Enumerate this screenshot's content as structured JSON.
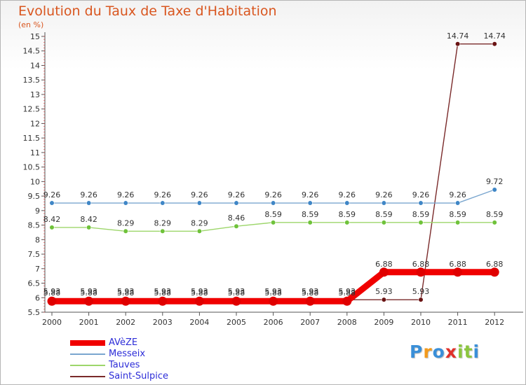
{
  "title": "Evolution du Taux de Taxe d'Habitation",
  "subtitle": "(en %)",
  "logo": {
    "letters": [
      "P",
      "r",
      "o",
      "x",
      "i",
      "t",
      "i"
    ],
    "colors": [
      "#3a8fd8",
      "#f29a1d",
      "#3a8fd8",
      "#e0302a",
      "#8cc63f",
      "#8cc63f",
      "#3a8fd8"
    ]
  },
  "chart_data": {
    "type": "line",
    "title": "Evolution du Taux de Taxe d'Habitation",
    "ylabel": "(en %)",
    "xlabel": "",
    "x": [
      "2000",
      "2001",
      "2002",
      "2003",
      "2004",
      "2005",
      "2006",
      "2007",
      "2008",
      "2009",
      "2010",
      "2011",
      "2012"
    ],
    "ylim": [
      5.5,
      15
    ],
    "yticks": [
      "5.5",
      "6",
      "6.5",
      "7",
      "7.5",
      "8",
      "8.5",
      "9",
      "9.5",
      "10",
      "10.5",
      "11",
      "11.5",
      "12",
      "12.5",
      "13",
      "13.5",
      "14",
      "14.5",
      "15"
    ],
    "grid": false,
    "legend_position": "bottom-left",
    "series": [
      {
        "name": "Saint-Sulpice",
        "color": "#7a2a2a",
        "marker": "#6a1414",
        "stroke_weight": "thin",
        "values": [
          5.93,
          5.93,
          5.93,
          5.93,
          5.93,
          5.93,
          5.93,
          5.93,
          5.93,
          5.93,
          5.93,
          14.74,
          14.74
        ],
        "labels": [
          "5.93",
          "5.93",
          "5.93",
          "5.93",
          "5.93",
          "5.93",
          "5.93",
          "5.93",
          "5.93",
          "5.93",
          "5.93",
          "14.74",
          "14.74"
        ]
      },
      {
        "name": "Tauves",
        "color": "#9dd66b",
        "marker": "#6fc23a",
        "stroke_weight": "thin",
        "values": [
          8.42,
          8.42,
          8.29,
          8.29,
          8.29,
          8.46,
          8.59,
          8.59,
          8.59,
          8.59,
          8.59,
          8.59,
          8.59
        ],
        "labels": [
          "8.42",
          "8.42",
          "8.29",
          "8.29",
          "8.29",
          "8.46",
          "8.59",
          "8.59",
          "8.59",
          "8.59",
          "8.59",
          "8.59",
          "8.59"
        ]
      },
      {
        "name": "Messeix",
        "color": "#7aa6cf",
        "marker": "#3f86c6",
        "stroke_weight": "thin",
        "values": [
          9.26,
          9.26,
          9.26,
          9.26,
          9.26,
          9.26,
          9.26,
          9.26,
          9.26,
          9.26,
          9.26,
          9.26,
          9.72
        ],
        "labels": [
          "9.26",
          "9.26",
          "9.26",
          "9.26",
          "9.26",
          "9.26",
          "9.26",
          "9.26",
          "9.26",
          "9.26",
          "9.26",
          "9.26",
          "9.72"
        ]
      },
      {
        "name": "AVèZE",
        "color": "#f00000",
        "marker": "#e00000",
        "stroke_weight": "thick",
        "values": [
          5.88,
          5.88,
          5.88,
          5.88,
          5.88,
          5.88,
          5.88,
          5.88,
          5.88,
          6.88,
          6.88,
          6.88,
          6.88
        ],
        "labels": [
          "5.88",
          "5.88",
          "5.88",
          "5.88",
          "5.88",
          "5.88",
          "5.88",
          "5.88",
          "5.88",
          "6.88",
          "6.88",
          "6.88",
          "6.88"
        ]
      }
    ],
    "legend": [
      "AVèZE",
      "Messeix",
      "Tauves",
      "Saint-Sulpice"
    ]
  }
}
